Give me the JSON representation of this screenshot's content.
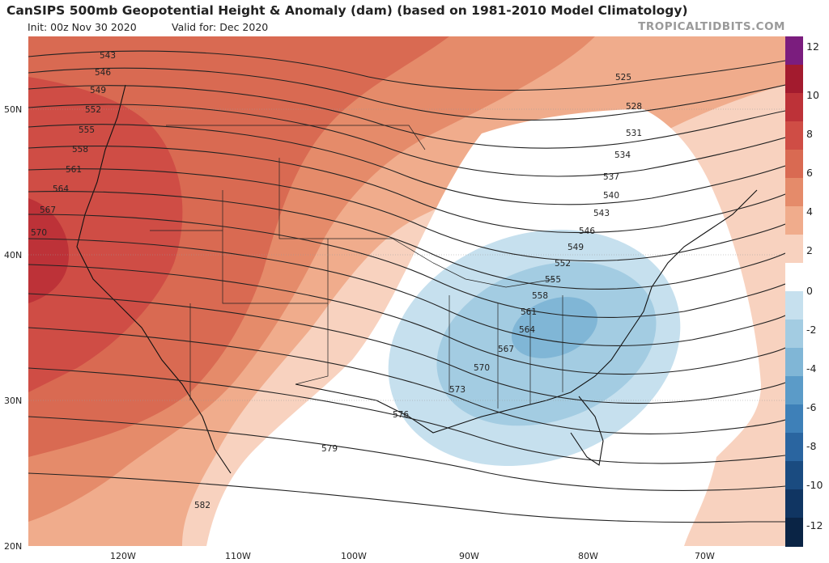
{
  "header": {
    "title": "CanSIPS 500mb Geopotential Height & Anomaly (dam) (based on 1981-2010 Model Climatology)",
    "init": "Init: 00z Nov 30 2020",
    "valid": "Valid for: Dec 2020",
    "brand": "TROPICALTIDBITS.COM"
  },
  "axes": {
    "lat_labels": [
      "50N",
      "40N",
      "30N",
      "20N"
    ],
    "lon_labels": [
      "120W",
      "110W",
      "100W",
      "90W",
      "80W",
      "70W"
    ]
  },
  "contours": {
    "height_labels": [
      "543",
      "546",
      "549",
      "552",
      "555",
      "558",
      "561",
      "564",
      "567",
      "570",
      "525",
      "528",
      "531",
      "534",
      "537",
      "540",
      "543",
      "546",
      "549",
      "552",
      "555",
      "558",
      "561",
      "564",
      "567",
      "570",
      "573",
      "576",
      "579",
      "582"
    ]
  },
  "colorbar": {
    "labels": [
      "12",
      "10",
      "8",
      "6",
      "4",
      "2",
      "0",
      "-2",
      "-4",
      "-6",
      "-8",
      "-10",
      "-12"
    ],
    "colors": [
      "#7b1d7e",
      "#a31b2e",
      "#bd3238",
      "#cf4d45",
      "#d96a52",
      "#e58b6a",
      "#f0ac8c",
      "#f8d2bf",
      "#ffffff",
      "#c6e0ee",
      "#a3cce2",
      "#80b6d6",
      "#5b9bc8",
      "#3e80b8",
      "#2a65a0",
      "#1a4b80",
      "#103562",
      "#0a2445"
    ]
  }
}
